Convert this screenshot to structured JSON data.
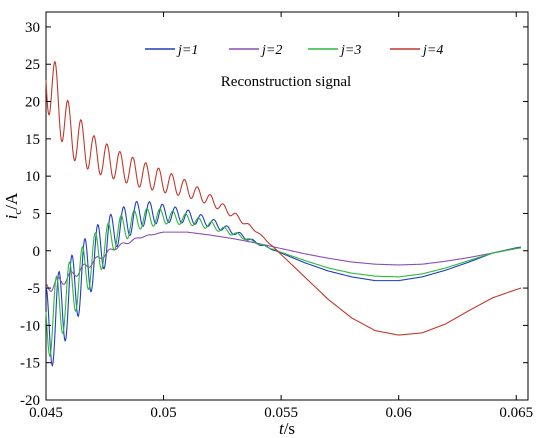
{
  "chart_data": {
    "type": "line",
    "annotation": "Reconstruction signal",
    "xlabel": {
      "main": "t",
      "unit": "/s"
    },
    "ylabel": {
      "main": "i",
      "sub": "c",
      "unit": "/A"
    },
    "xlim": [
      0.045,
      0.0655
    ],
    "ylim": [
      -20,
      32
    ],
    "xticks": [
      0.045,
      0.05,
      0.055,
      0.06,
      0.065
    ],
    "xtick_labels": [
      "0.045",
      "0.05",
      "0.055",
      "0.06",
      "0.065"
    ],
    "yticks": [
      -20,
      -15,
      -10,
      -5,
      0,
      5,
      10,
      15,
      20,
      25,
      30
    ],
    "ytick_labels": [
      "-20",
      "-15",
      "-10",
      "-5",
      "0",
      "5",
      "10",
      "15",
      "20",
      "25",
      "30"
    ],
    "grid": false,
    "legend_position": "top",
    "series": [
      {
        "name": "j=1",
        "color": "#1f3fbf",
        "osc_period": 0.00055,
        "x": [
          0.045,
          0.046,
          0.047,
          0.048,
          0.049,
          0.05,
          0.051,
          0.052,
          0.053,
          0.054,
          0.055,
          0.056,
          0.057,
          0.058,
          0.059,
          0.06,
          0.061,
          0.062,
          0.063,
          0.064,
          0.065,
          0.0652
        ],
        "y": [
          -11,
          -6,
          -1,
          3,
          5,
          5,
          4.6,
          3.8,
          2.5,
          1,
          -0.3,
          -1.6,
          -2.7,
          -3.5,
          -4,
          -4,
          -3.5,
          -2.6,
          -1.5,
          -0.3,
          0.4,
          0.5
        ],
        "amp": [
          6,
          5,
          4,
          2.5,
          1.8,
          1.2,
          0.9,
          0.6,
          0.35,
          0.15,
          0,
          0,
          0,
          0,
          0,
          0,
          0,
          0,
          0,
          0,
          0,
          0
        ]
      },
      {
        "name": "j=2",
        "color": "#8a4fb5",
        "osc_period": 0.00055,
        "x": [
          0.045,
          0.046,
          0.047,
          0.048,
          0.049,
          0.05,
          0.051,
          0.052,
          0.053,
          0.054,
          0.055,
          0.056,
          0.057,
          0.058,
          0.059,
          0.06,
          0.061,
          0.062,
          0.063,
          0.064,
          0.065,
          0.0652
        ],
        "y": [
          -5,
          -3.5,
          -1.5,
          0.5,
          1.8,
          2.5,
          2.5,
          2.1,
          1.6,
          1,
          0.3,
          -0.4,
          -1,
          -1.5,
          -1.8,
          -1.9,
          -1.8,
          -1.4,
          -0.9,
          -0.3,
          0.3,
          0.4
        ],
        "amp": [
          0.8,
          0.6,
          0.4,
          0.25,
          0.1,
          0,
          0,
          0,
          0,
          0,
          0,
          0,
          0,
          0,
          0,
          0,
          0,
          0,
          0,
          0,
          0,
          0
        ]
      },
      {
        "name": "j=3",
        "color": "#2db83a",
        "osc_period": 0.00055,
        "x": [
          0.045,
          0.046,
          0.047,
          0.048,
          0.049,
          0.05,
          0.051,
          0.052,
          0.053,
          0.054,
          0.055,
          0.056,
          0.057,
          0.058,
          0.059,
          0.06,
          0.061,
          0.062,
          0.063,
          0.064,
          0.065,
          0.0652
        ],
        "y": [
          -10,
          -5.5,
          -1,
          2.5,
          4.3,
          4.6,
          4.2,
          3.4,
          2.3,
          1,
          -0.2,
          -1.3,
          -2.3,
          -3,
          -3.4,
          -3.5,
          -3.1,
          -2.3,
          -1.3,
          -0.3,
          0.3,
          0.4
        ],
        "amp": [
          5,
          4,
          3.2,
          2,
          1.4,
          1,
          0.7,
          0.5,
          0.3,
          0.1,
          0,
          0,
          0,
          0,
          0,
          0,
          0,
          0,
          0,
          0,
          0,
          0
        ]
      },
      {
        "name": "j=4",
        "color": "#c0392b",
        "osc_period": 0.00055,
        "x": [
          0.045,
          0.046,
          0.047,
          0.048,
          0.049,
          0.05,
          0.051,
          0.052,
          0.053,
          0.054,
          0.055,
          0.056,
          0.057,
          0.058,
          0.059,
          0.06,
          0.061,
          0.062,
          0.063,
          0.064,
          0.065,
          0.0652
        ],
        "y": [
          24,
          16,
          13,
          11.5,
          10.3,
          9.3,
          8.3,
          6.8,
          4.8,
          2.5,
          -0.5,
          -3.5,
          -6.5,
          -9,
          -10.7,
          -11.3,
          -11,
          -9.8,
          -8,
          -6.3,
          -5.2,
          -5
        ],
        "amp": [
          5,
          3.5,
          2.5,
          2,
          1.8,
          1.5,
          1.1,
          0.7,
          0.4,
          0.1,
          0,
          0,
          0,
          0,
          0,
          0,
          0,
          0,
          0,
          0,
          0,
          0
        ]
      }
    ]
  }
}
